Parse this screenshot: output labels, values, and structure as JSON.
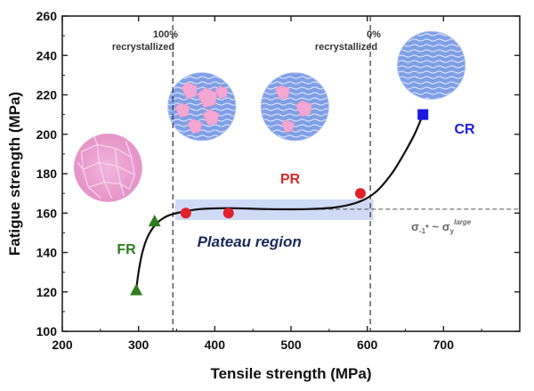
{
  "chart_data": {
    "type": "scatter",
    "xlabel": "Tensile strength (MPa)",
    "ylabel": "Fatigue strength (MPa)",
    "xlim": [
      200,
      800
    ],
    "ylim": [
      100,
      260
    ],
    "xticks": [
      200,
      300,
      400,
      500,
      600,
      700
    ],
    "yticks": [
      100,
      120,
      140,
      160,
      180,
      200,
      220,
      240,
      260
    ],
    "grid": false,
    "series": [
      {
        "name": "FR",
        "marker": "triangle",
        "color": "#2e7d1e",
        "points": [
          {
            "x": 297,
            "y": 121
          },
          {
            "x": 321,
            "y": 156
          }
        ]
      },
      {
        "name": "PR",
        "marker": "circle",
        "color": "#e0202a",
        "points": [
          {
            "x": 362,
            "y": 160
          },
          {
            "x": 418,
            "y": 160
          },
          {
            "x": 591,
            "y": 170
          }
        ]
      },
      {
        "name": "CR",
        "marker": "square",
        "color": "#1a1ae0",
        "points": [
          {
            "x": 673,
            "y": 210
          }
        ]
      }
    ],
    "trend_curve": [
      [
        297,
        121
      ],
      [
        300,
        130
      ],
      [
        305,
        140
      ],
      [
        312,
        148
      ],
      [
        322,
        154
      ],
      [
        335,
        158
      ],
      [
        350,
        160
      ],
      [
        380,
        162
      ],
      [
        420,
        162.5
      ],
      [
        470,
        162
      ],
      [
        520,
        162
      ],
      [
        560,
        163
      ],
      [
        591,
        166
      ],
      [
        612,
        171
      ],
      [
        632,
        180
      ],
      [
        648,
        190
      ],
      [
        662,
        200
      ],
      [
        673,
        210
      ]
    ],
    "vertical_lines": [
      {
        "x": 345,
        "label_line1": "100%",
        "label_line2": "recrystallized"
      },
      {
        "x": 604,
        "label_line1": "0%",
        "label_line2": "recrystallized"
      }
    ],
    "plateau": {
      "x_range": [
        348,
        608
      ],
      "y_range": [
        156.5,
        167
      ],
      "label": "Plateau region",
      "color": "#c7d3f4"
    },
    "reference_line": {
      "y": 162,
      "x_from": 540,
      "x_to": 800,
      "label_parts": [
        "σ",
        "-1",
        "*",
        " ~ σ",
        "y",
        "large"
      ]
    },
    "annotations": [
      {
        "text": "FR",
        "color": "#2e7d1e"
      },
      {
        "text": "PR",
        "color": "#d92a2a"
      },
      {
        "text": "CR",
        "color": "#1a1ae0"
      }
    ],
    "microstructure_icons": [
      {
        "kind": "fully-recrystallized-grains",
        "center": [
          260,
          183
        ]
      },
      {
        "kind": "partially-recrystallized-grains",
        "center": [
          383,
          214
        ]
      },
      {
        "kind": "partially-recrystallized-grains-sparse",
        "center": [
          505,
          214
        ]
      },
      {
        "kind": "cold-rolled-lamellar",
        "center": [
          684,
          235
        ]
      }
    ]
  }
}
